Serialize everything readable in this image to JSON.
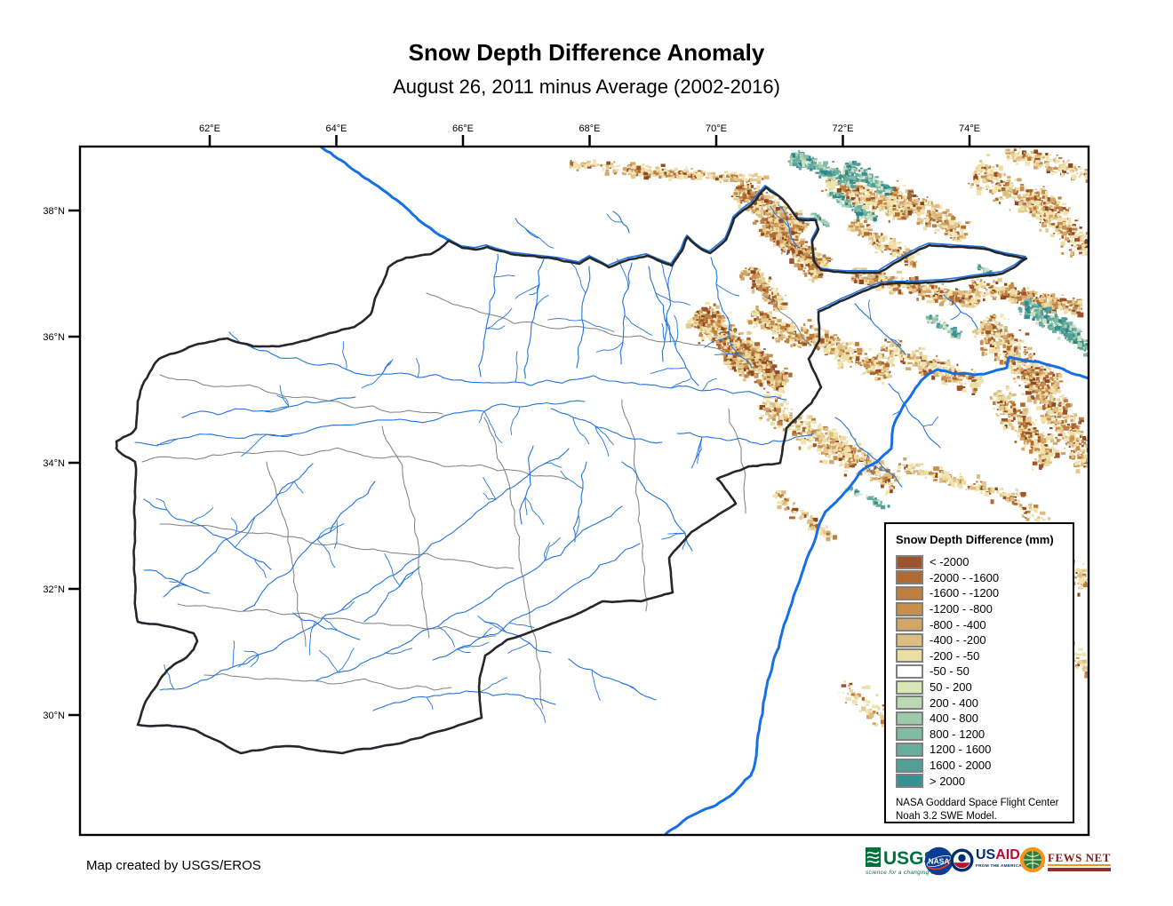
{
  "title": "Snow Depth Difference Anomaly",
  "subtitle": "August 26, 2011 minus Average (2002-2016)",
  "map": {
    "x_ticks": [
      "62°E",
      "64°E",
      "66°E",
      "68°E",
      "70°E",
      "72°E",
      "74°E"
    ],
    "y_ticks": [
      "38°N",
      "36°N",
      "34°N",
      "32°N",
      "30°N"
    ]
  },
  "legend": {
    "title": "Snow Depth Difference (mm)",
    "items": [
      {
        "label": "< -2000",
        "color": "#A0522D"
      },
      {
        "label": "-2000 - -1600",
        "color": "#B06A30"
      },
      {
        "label": "-1600 - -1200",
        "color": "#C07E3E"
      },
      {
        "label": "-1200 - -800",
        "color": "#C78E4E"
      },
      {
        "label": "-800 - -400",
        "color": "#D3A567"
      },
      {
        "label": "-400 - -200",
        "color": "#DEBD81"
      },
      {
        "label": "-200 - -50",
        "color": "#ECDDA3"
      },
      {
        "label": "-50 - 50",
        "color": "#FFFFFF"
      },
      {
        "label": "50 - 200",
        "color": "#D8E7B6"
      },
      {
        "label": "200 - 400",
        "color": "#B9D9B1"
      },
      {
        "label": "400 - 800",
        "color": "#9CCAAA"
      },
      {
        "label": "800 - 1200",
        "color": "#82BBA4"
      },
      {
        "label": "1200 - 1600",
        "color": "#68AD9E"
      },
      {
        "label": "1600 - 2000",
        "color": "#519F98"
      },
      {
        "label": "> 2000",
        "color": "#399092"
      }
    ],
    "note_line1": "NASA Goddard Space Flight Center",
    "note_line2": "Noah 3.2 SWE Model."
  },
  "footer": {
    "credit": "Map created by USGS/EROS",
    "logos": {
      "usgs": {
        "name": "USGS",
        "tagline": "science for a changing world"
      },
      "nasa": {
        "name": "NASA"
      },
      "usaid": {
        "name": "USAID",
        "tagline": "FROM THE AMERICAN PEOPLE"
      },
      "fewsnet": {
        "name": "FEWS NET"
      }
    }
  },
  "colors": {
    "river": "#2273DE",
    "river_major": "#156FE6",
    "basin_boundary": "#7E7E7E",
    "country_border": "#24272B"
  }
}
